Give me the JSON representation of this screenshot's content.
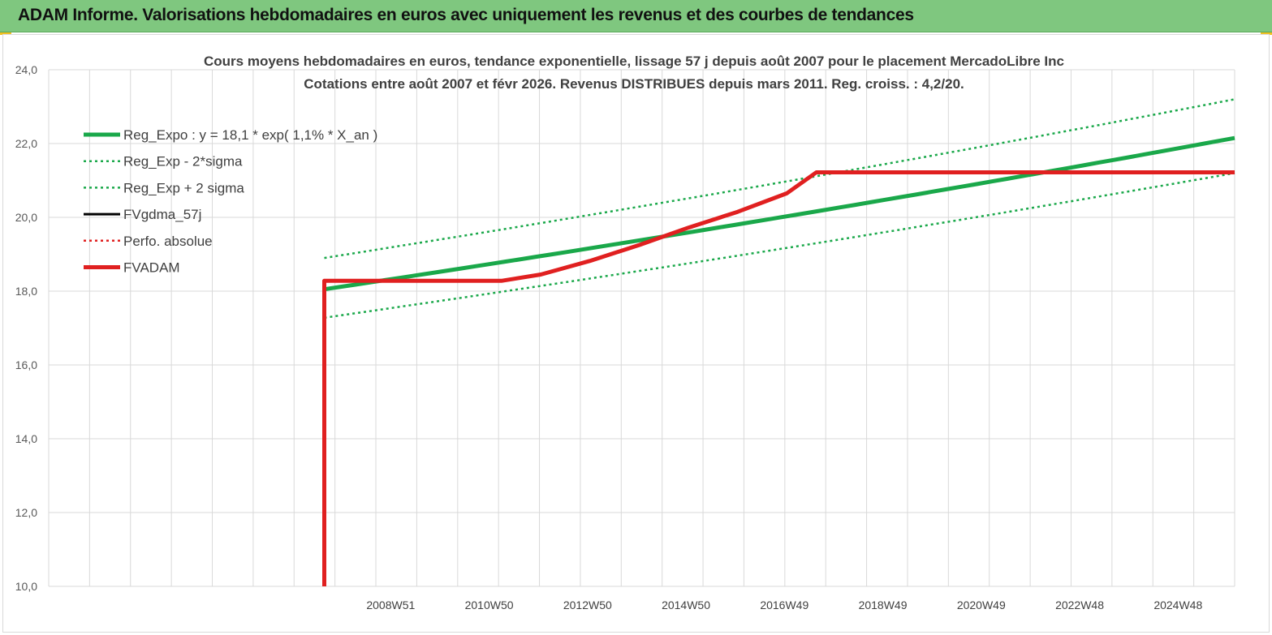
{
  "banner": {
    "title": "ADAM Informe. Valorisations hebdomadaires en euros avec uniquement les revenus et des courbes de tendances"
  },
  "colors": {
    "banner_bg": "#7fc77f",
    "regression": "#1aa84a",
    "fvadam": "#e02020",
    "fvgdma": "#000000",
    "grid": "#d9d9d9"
  },
  "chart_data": {
    "type": "line",
    "title": "Cours moyens hebdomadaires en euros, tendance exponentielle, lissage 57 j depuis août 2007 pour le placement MercadoLibre Inc",
    "subtitle": "Cotations entre août 2007 et févr 2026. Revenus DISTRIBUES depuis mars 2011. Reg. croiss. : 4,2/20.",
    "xlabel": "",
    "ylabel": "",
    "ylim": [
      10,
      24
    ],
    "yticks": [
      "10,0",
      "12,0",
      "14,0",
      "16,0",
      "18,0",
      "20,0",
      "22,0",
      "24,0"
    ],
    "x_tick_labels": [
      "2008W51",
      "2010W50",
      "2012W50",
      "2014W50",
      "2016W49",
      "2018W49",
      "2020W49",
      "2022W48",
      "2024W48"
    ],
    "x_range": [
      "2007W33",
      "2026W06"
    ],
    "grid": true,
    "legend_position": "top-left",
    "legend": [
      {
        "label": "Reg_Expo : y = 18,1 * exp( 1,1% *  X_an )",
        "style": "solid-thick",
        "color": "#1aa84a"
      },
      {
        "label": "Reg_Exp - 2*sigma",
        "style": "dotted",
        "color": "#1aa84a"
      },
      {
        "label": "Reg_Exp + 2 sigma",
        "style": "dotted",
        "color": "#1aa84a"
      },
      {
        "label": "FVgdma_57j",
        "style": "solid",
        "color": "#000000"
      },
      {
        "label": "Perfo. absolue",
        "style": "dotted",
        "color": "#e02020"
      },
      {
        "label": "FVADAM",
        "style": "solid-thick",
        "color": "#e02020"
      }
    ],
    "series": [
      {
        "name": "Reg_Expo : y = 18,1 * exp( 1,1% *  X_an )",
        "x": [
          2007.6,
          2026.1
        ],
        "y": [
          18.05,
          22.15
        ]
      },
      {
        "name": "Reg_Exp - 2*sigma",
        "x": [
          2007.6,
          2026.1
        ],
        "y": [
          17.28,
          21.2
        ]
      },
      {
        "name": "Reg_Exp + 2 sigma",
        "x": [
          2007.6,
          2026.1
        ],
        "y": [
          18.9,
          23.2
        ]
      },
      {
        "name": "FVADAM",
        "x": [
          2007.6,
          2007.6,
          2011.2,
          2012.0,
          2013.0,
          2014.0,
          2015.0,
          2016.0,
          2017.0,
          2017.6,
          2026.1
        ],
        "y": [
          10.0,
          18.28,
          18.28,
          18.45,
          18.82,
          19.25,
          19.72,
          20.15,
          20.65,
          21.22,
          21.22
        ]
      }
    ]
  }
}
